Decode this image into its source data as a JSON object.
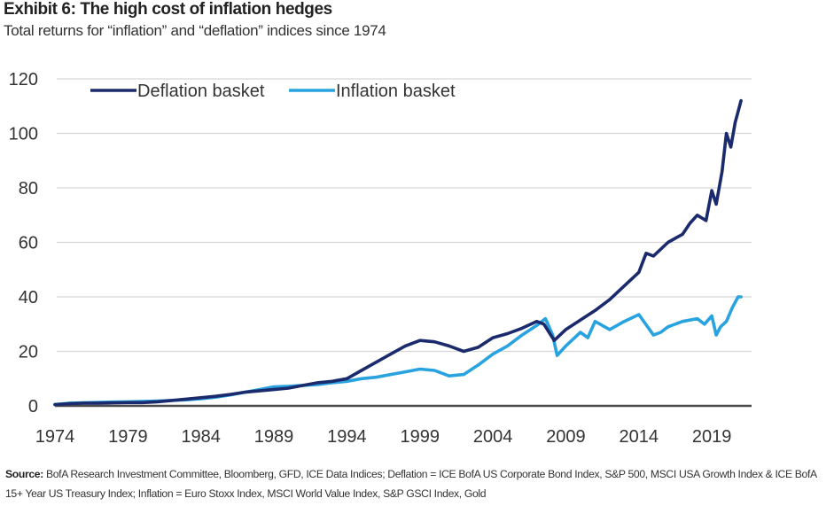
{
  "header": {
    "title": "Exhibit 6: The high cost of inflation hedges",
    "subtitle": "Total returns for “inflation” and “deflation” indices since 1974"
  },
  "footnote": {
    "label": "Source:",
    "text": " BofA Research Investment Committee, Bloomberg, GFD, ICE Data Indices; Deflation = ICE BofA US Corporate Bond Index, S&P 500, MSCI USA Growth Index & ICE BofA 15+ Year US Treasury Index; Inflation = Euro Stoxx Index, MSCI World Value Index, S&P GSCI Index, Gold"
  },
  "chart_data": {
    "type": "line",
    "title": "Exhibit 6: The high cost of inflation hedges",
    "subtitle": "Total returns for “inflation” and “deflation” indices since 1974",
    "xlabel": "",
    "ylabel": "",
    "xlim": [
      1974,
      2024
    ],
    "ylim": [
      0,
      120
    ],
    "x_ticks": [
      1974,
      1979,
      1984,
      1989,
      1994,
      1999,
      2004,
      2009,
      2014,
      2019
    ],
    "x_tick_labels": [
      "1974",
      "1979",
      "1984",
      "1989",
      "1994",
      "1999",
      "2004",
      "2009",
      "2014",
      "2019"
    ],
    "y_ticks": [
      0,
      20,
      40,
      60,
      80,
      100,
      120
    ],
    "y_tick_labels": [
      "0",
      "20",
      "40",
      "60",
      "80",
      "100",
      "120"
    ],
    "grid": "horizontal",
    "legend_position": "top-left",
    "series": [
      {
        "name": "Deflation basket",
        "color": "#1a2a6c",
        "x": [
          1974,
          1975,
          1976,
          1977,
          1979,
          1980,
          1981,
          1982,
          1984,
          1985,
          1986,
          1987,
          1988,
          1989,
          1990,
          1991,
          1992,
          1993,
          1994,
          1995,
          1996,
          1997,
          1998,
          1999,
          2000,
          2001,
          2002,
          2003,
          2004,
          2005,
          2006,
          2007,
          2007.5,
          2008.2,
          2009,
          2010,
          2011,
          2012,
          2013,
          2014,
          2014.5,
          2015,
          2016,
          2017,
          2017.5,
          2018,
          2018.6,
          2019,
          2019.3,
          2019.7,
          2020,
          2020.3,
          2020.6,
          2021
        ],
        "y": [
          0.5,
          0.8,
          1.0,
          1.0,
          1.2,
          1.2,
          1.5,
          2.0,
          3.0,
          3.5,
          4.2,
          5.0,
          5.5,
          6.0,
          6.5,
          7.5,
          8.5,
          9.0,
          10.0,
          13.0,
          16.0,
          19.0,
          22.0,
          24.0,
          23.5,
          22.0,
          20.0,
          21.5,
          25.0,
          26.5,
          28.5,
          31.0,
          30.0,
          24.0,
          28.0,
          31.5,
          35.0,
          39.0,
          44.0,
          49.0,
          56.0,
          55.0,
          60.0,
          63.0,
          67.0,
          70.0,
          68.0,
          79.0,
          74.0,
          86.0,
          100.0,
          95.0,
          104.0,
          112.0
        ]
      },
      {
        "name": "Inflation basket",
        "color": "#29a3df",
        "x": [
          1974,
          1975,
          1977,
          1979,
          1981,
          1983,
          1984,
          1985,
          1986,
          1987,
          1988,
          1989,
          1990,
          1991,
          1992,
          1993,
          1994,
          1995,
          1996,
          1997,
          1998,
          1999,
          2000,
          2001,
          2002,
          2003,
          2004,
          2005,
          2006,
          2007,
          2007.6,
          2008.1,
          2008.4,
          2009,
          2010,
          2010.5,
          2011,
          2012,
          2013,
          2014,
          2015,
          2015.5,
          2016,
          2017,
          2018,
          2018.5,
          2019,
          2019.3,
          2019.6,
          2020,
          2020.4,
          2020.8,
          2021
        ],
        "y": [
          0.5,
          1.0,
          1.3,
          1.5,
          1.8,
          2.2,
          2.6,
          3.2,
          4.0,
          5.0,
          6.0,
          7.0,
          7.2,
          7.5,
          7.8,
          8.5,
          9.0,
          10.0,
          10.5,
          11.5,
          12.5,
          13.5,
          13.0,
          11.0,
          11.5,
          15.0,
          19.0,
          22.0,
          26.0,
          29.5,
          32.0,
          26.0,
          18.5,
          22.0,
          27.0,
          25.0,
          31.0,
          28.0,
          31.0,
          33.5,
          26.0,
          27.0,
          29.0,
          31.0,
          32.0,
          30.0,
          33.0,
          26.0,
          29.0,
          31.0,
          36.0,
          40.0,
          40.0
        ]
      }
    ]
  }
}
